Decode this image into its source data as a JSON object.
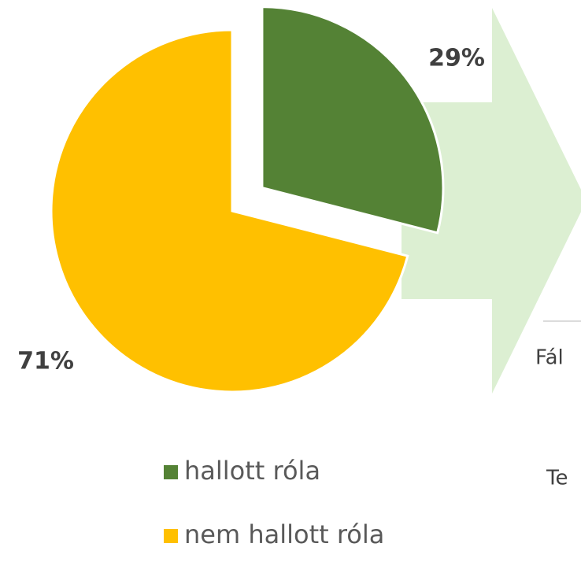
{
  "chart_data": {
    "type": "pie",
    "categories": [
      "hallott róla",
      "nem hallott róla"
    ],
    "values": [
      29,
      71
    ],
    "value_labels": [
      "29%",
      "71%"
    ],
    "colors": [
      "#548235",
      "#ffc000"
    ],
    "exploded": [
      true,
      false
    ]
  },
  "side_texts": [
    "Fál",
    "Te"
  ]
}
